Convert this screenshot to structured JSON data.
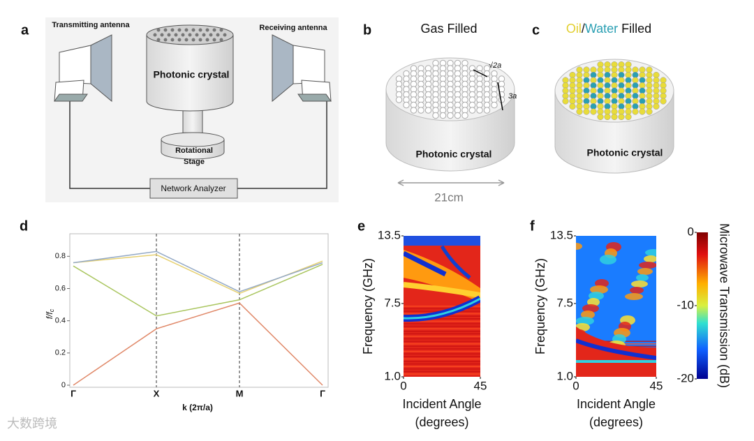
{
  "figure": {
    "a": {
      "label": "a",
      "transmitting": "Transmitting antenna",
      "receiving": "Receiving antenna",
      "crystal": "Photonic crystal",
      "stage": [
        "Rotational",
        "Stage"
      ],
      "analyzer": "Network Analyzer"
    },
    "b": {
      "label": "b",
      "title": "Gas Filled",
      "spacing1": "√2a",
      "spacing2": "3a",
      "crystal": "Photonic crystal",
      "width": "21cm"
    },
    "c": {
      "label": "c",
      "title": [
        "Oil",
        "/",
        "Water",
        " Filled"
      ],
      "title_colors": [
        "#e2cf2f",
        "#111111",
        "#2a9fb3",
        "#111111"
      ],
      "crystal": "Photonic crystal"
    }
  },
  "watermark": "大数跨境",
  "chart_data": [
    {
      "type": "line",
      "label": "d",
      "categories": [
        "Γ",
        "X",
        "M",
        "Γ"
      ],
      "series": [
        {
          "color": "#e08868",
          "values": [
            0,
            0.35,
            0.51,
            0
          ]
        },
        {
          "color": "#a9c55e",
          "values": [
            0.74,
            0.43,
            0.53,
            0.75
          ]
        },
        {
          "color": "#e6d070",
          "values": [
            0.76,
            0.81,
            0.57,
            0.77
          ]
        },
        {
          "color": "#93a9c6",
          "values": [
            0.76,
            0.83,
            0.58,
            0.76
          ]
        }
      ],
      "ylim": [
        0,
        0.94
      ],
      "yticks": [
        0,
        0.2,
        0.4,
        0.6,
        0.8
      ],
      "ylabel": [
        "f/f",
        "c"
      ],
      "xlabel": "k (2π/a)",
      "dashed_at": [
        1,
        2
      ]
    },
    {
      "type": "heatmap",
      "label": "e",
      "variant": "gas",
      "ylim": [
        1,
        13.5
      ],
      "yticks": [
        {
          "value": 1,
          "label": "1.0"
        },
        7.5,
        13.5
      ],
      "xlim": [
        0,
        45
      ],
      "xticks": [
        0,
        45
      ],
      "ylabel": "Frequency (GHz)",
      "xlabel": [
        "Incident Angle",
        "(degrees)"
      ]
    },
    {
      "type": "heatmap",
      "label": "f",
      "variant": "liquid",
      "ylim": [
        1,
        13.5
      ],
      "yticks": [
        {
          "value": 1,
          "label": "1.0"
        },
        7.5,
        13.5
      ],
      "xlim": [
        0,
        45
      ],
      "xticks": [
        0,
        45
      ],
      "ylabel": "Frequency (GHz)",
      "xlabel": [
        "Incident Angle",
        "(degrees)"
      ],
      "colorbar": {
        "label": "Microwave Transmission (dB)",
        "lim": [
          -20,
          0
        ],
        "ticks": [
          0,
          -10,
          -20
        ]
      }
    }
  ]
}
